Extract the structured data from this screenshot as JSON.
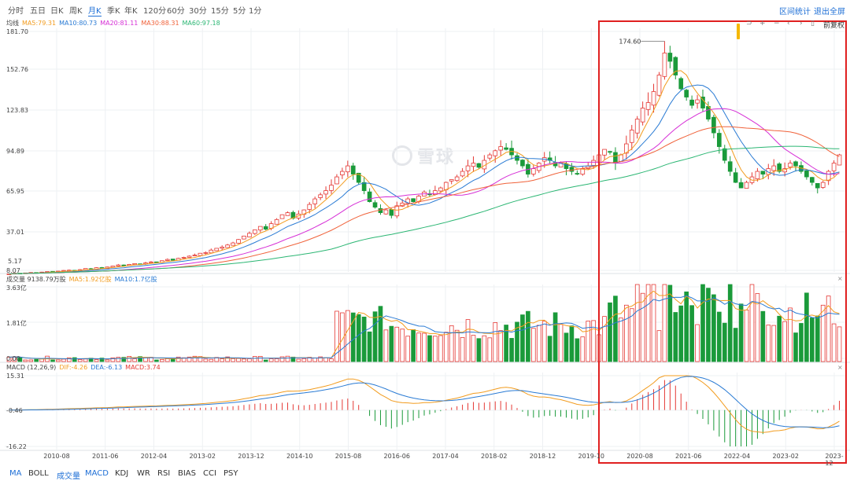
{
  "toolbar": {
    "periods": [
      "分时",
      "五日",
      "日K",
      "周K",
      "月K",
      "季K",
      "年K",
      "120分",
      "60分",
      "30分",
      "15分",
      "5分",
      "1分"
    ],
    "active": "月K",
    "interval_stats": "区间统计",
    "exit_fullscreen": "退出全屏"
  },
  "price_legend": {
    "label": "均线",
    "items": [
      {
        "text": "MA5:79.31",
        "color": "#f29c1f"
      },
      {
        "text": "MA10:80.73",
        "color": "#2a7bd4"
      },
      {
        "text": "MA20:81.11",
        "color": "#d62fd6"
      },
      {
        "text": "MA30:88.31",
        "color": "#f0623a"
      },
      {
        "text": "MA60:97.18",
        "color": "#2bb673"
      }
    ],
    "adjust": "前复权",
    "controls": [
      "⊃",
      "+",
      "−",
      "‹",
      "›",
      "▯"
    ]
  },
  "vol_legend": {
    "label": "成交量 9138.79万股",
    "items": [
      {
        "text": "MA5:1.92亿股",
        "color": "#f29c1f"
      },
      {
        "text": "MA10:1.7亿股",
        "color": "#2a7bd4"
      }
    ]
  },
  "macd_legend": {
    "label": "MACD (12,26,9)",
    "items": [
      {
        "text": "DIF:-4.26",
        "color": "#f29c1f"
      },
      {
        "text": "DEA:-6.13",
        "color": "#2a7bd4"
      },
      {
        "text": "MACD:3.74",
        "color": "#e53935"
      }
    ]
  },
  "watermark": "雪球",
  "bottom_tabs": [
    "MA",
    "BOLL",
    "成交量",
    "MACD",
    "KDJ",
    "WR",
    "RSI",
    "BIAS",
    "CCI",
    "PSY"
  ],
  "bottom_active": [
    "MA",
    "成交量",
    "MACD"
  ],
  "colors": {
    "up": "#e53935",
    "down": "#1a9a3a",
    "highlight": "#e02020",
    "marker": "#f5b800"
  },
  "chart_data": {
    "type": "candlestick",
    "price_axis": {
      "ticks": [
        "181.70",
        "152.76",
        "123.83",
        "94.89",
        "65.95",
        "37.01",
        "8.07"
      ],
      "ylim": [
        8.07,
        181.7
      ],
      "min_label": "5.17"
    },
    "volume_axis": {
      "ticks": [
        "3.63亿",
        "1.81亿",
        "0.00"
      ]
    },
    "macd_axis": {
      "ticks": [
        "15.31",
        "-0.46",
        "-16.22"
      ]
    },
    "x_labels": [
      "2010-08",
      "2011-06",
      "2012-04",
      "2013-02",
      "2013-12",
      "2014-10",
      "2015-08",
      "2016-06",
      "2017-04",
      "2018-02",
      "2018-12",
      "2019-10",
      "2020-08",
      "2021-06",
      "2022-04",
      "2023-02",
      "2023-12"
    ],
    "max_label": "174.60",
    "monthly_close": [
      5.5,
      6.0,
      5.7,
      6.2,
      6.5,
      6.3,
      6.8,
      7.2,
      6.9,
      7.5,
      8.0,
      8.2,
      7.9,
      8.6,
      9.4,
      9.1,
      10.0,
      9.6,
      10.5,
      11.2,
      12.0,
      11.5,
      12.4,
      13.0,
      12.6,
      13.5,
      14.2,
      14.0,
      15.1,
      16.0,
      15.4,
      16.8,
      17.5,
      18.4,
      19.2,
      20.5,
      21.0,
      22.8,
      24.1,
      25.0,
      26.5,
      28.0,
      30.5,
      33.0,
      35.0,
      37.5,
      40.0,
      38.0,
      42.0,
      45.0,
      48.5,
      50.0,
      46.0,
      49.0,
      52.0,
      56.0,
      60.0,
      63.0,
      66.0,
      70.0,
      76.0,
      80.0,
      84.0,
      78.0,
      72.0,
      66.0,
      58.0,
      54.0,
      50.0,
      52.0,
      48.0,
      55.0,
      57.0,
      60.0,
      58.0,
      62.0,
      65.0,
      63.0,
      66.0,
      68.0,
      72.0,
      74.0,
      76.0,
      80.0,
      84.0,
      86.0,
      83.0,
      88.0,
      92.0,
      95.0,
      98.0,
      96.0,
      92.0,
      88.0,
      84.0,
      78.0,
      82.0,
      86.0,
      90.0,
      88.0,
      84.0,
      86.0,
      82.0,
      80.0,
      78.0,
      82.0,
      84.0,
      88.0,
      92.0,
      96.0,
      94.0,
      86.0,
      92.0,
      100.0,
      110.0,
      118.0,
      126.0,
      130.0,
      138.0,
      150.0,
      166.0,
      160.0,
      150.0,
      140.0,
      134.0,
      128.0,
      132.0,
      126.0,
      118.0,
      108.0,
      98.0,
      88.0,
      80.0,
      72.0,
      68.0,
      72.0,
      76.0,
      80.0,
      78.0,
      82.0,
      84.0,
      80.0,
      82.0,
      86.0,
      84.0,
      80.0,
      76.0,
      72.0,
      68.0,
      72.0,
      80.0,
      86.0,
      92.0
    ],
    "note": "Monthly K-line from 2010 to 2023-12; indicator lines follow the plotted series."
  }
}
